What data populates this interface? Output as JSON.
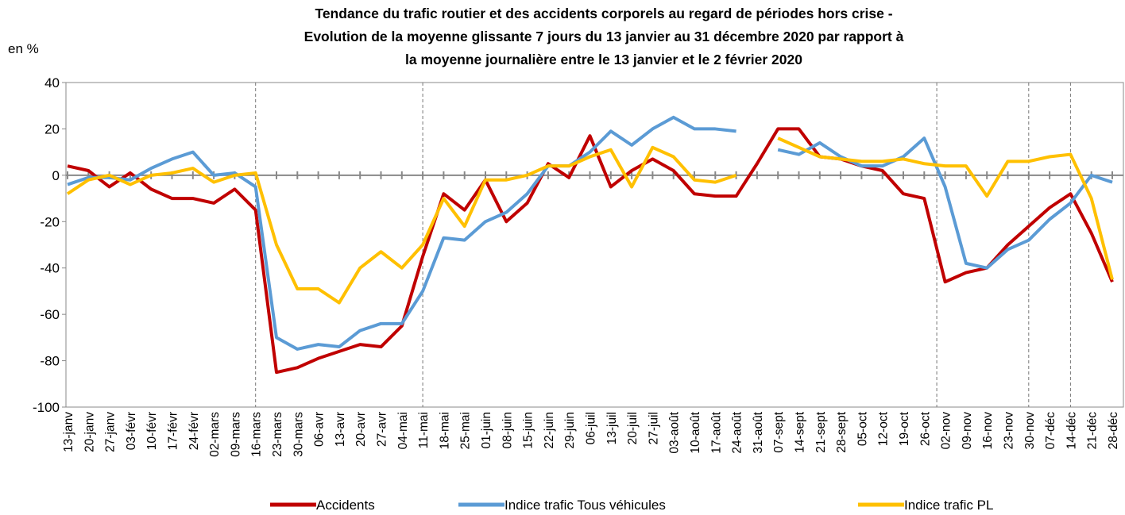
{
  "chart_data": {
    "type": "line",
    "title": [
      "Tendance du trafic routier et des accidents corporels au regard de périodes hors crise -",
      "Evolution de la moyenne glissante 7 jours du 13 janvier au 31 décembre 2020 par rapport à",
      "la moyenne journalière entre le 13 janvier et le 2 février 2020"
    ],
    "y_label": "en %",
    "categories": [
      "13-janv",
      "20-janv",
      "27-janv",
      "03-févr",
      "10-févr",
      "17-févr",
      "24-févr",
      "02-mars",
      "09-mars",
      "16-mars",
      "23-mars",
      "30-mars",
      "06-avr",
      "13-avr",
      "20-avr",
      "27-avr",
      "04-mai",
      "11-mai",
      "18-mai",
      "25-mai",
      "01-juin",
      "08-juin",
      "15-juin",
      "22-juin",
      "29-juin",
      "06-juil",
      "13-juil",
      "20-juil",
      "27-juil",
      "03-août",
      "10-août",
      "17-août",
      "24-août",
      "31-août",
      "07-sept",
      "14-sept",
      "21-sept",
      "28-sept",
      "05-oct",
      "12-oct",
      "19-oct",
      "26-oct",
      "02-nov",
      "09-nov",
      "16-nov",
      "23-nov",
      "30-nov",
      "07-déc",
      "14-déc",
      "21-déc",
      "28-déc"
    ],
    "series": [
      {
        "name": "Accidents",
        "color": "#c00000",
        "values": [
          4,
          2,
          -5,
          1,
          -6,
          -10,
          -10,
          -12,
          -6,
          -15,
          -85,
          -83,
          -79,
          -76,
          -73,
          -74,
          -65,
          -35,
          -8,
          -15,
          -2,
          -20,
          -12,
          5,
          -1,
          17,
          -5,
          2,
          7,
          2,
          -8,
          -9,
          -9,
          5,
          20,
          20,
          8,
          7,
          4,
          2,
          -8,
          -10,
          -46,
          -42,
          -40,
          -30,
          -22,
          -14,
          -8,
          -25,
          -46
        ]
      },
      {
        "name": "Indice trafic Tous véhicules",
        "color": "#5b9bd5",
        "values": [
          -4,
          -1,
          -1,
          -2,
          3,
          7,
          10,
          0,
          1,
          -5,
          -70,
          -75,
          -73,
          -74,
          -67,
          -64,
          -64,
          -50,
          -27,
          -28,
          -20,
          -16,
          -8,
          4,
          4,
          10,
          19,
          13,
          20,
          25,
          20,
          20,
          19,
          null,
          11,
          9,
          14,
          8,
          4,
          4,
          8,
          16,
          -5,
          -38,
          -40,
          -32,
          -28,
          -19,
          -12,
          0,
          -3
        ]
      },
      {
        "name": "Indice trafic PL",
        "color": "#ffc000",
        "values": [
          -8,
          -2,
          0,
          -4,
          0,
          1,
          3,
          -3,
          0,
          1,
          -30,
          -49,
          -49,
          -55,
          -40,
          -33,
          -40,
          -30,
          -10,
          -22,
          -2,
          -2,
          0,
          4,
          4,
          8,
          11,
          -5,
          12,
          8,
          -2,
          -3,
          0,
          null,
          16,
          12,
          8,
          7,
          6,
          6,
          7,
          5,
          4,
          4,
          -9,
          6,
          6,
          8,
          9,
          -10,
          -45
        ]
      }
    ],
    "ylim": [
      -100,
      40
    ],
    "yticks": [
      -100,
      -80,
      -60,
      -40,
      -20,
      0,
      20,
      40
    ],
    "vlines": [
      9,
      17,
      41.6,
      46,
      48
    ],
    "legend": "bottom"
  }
}
